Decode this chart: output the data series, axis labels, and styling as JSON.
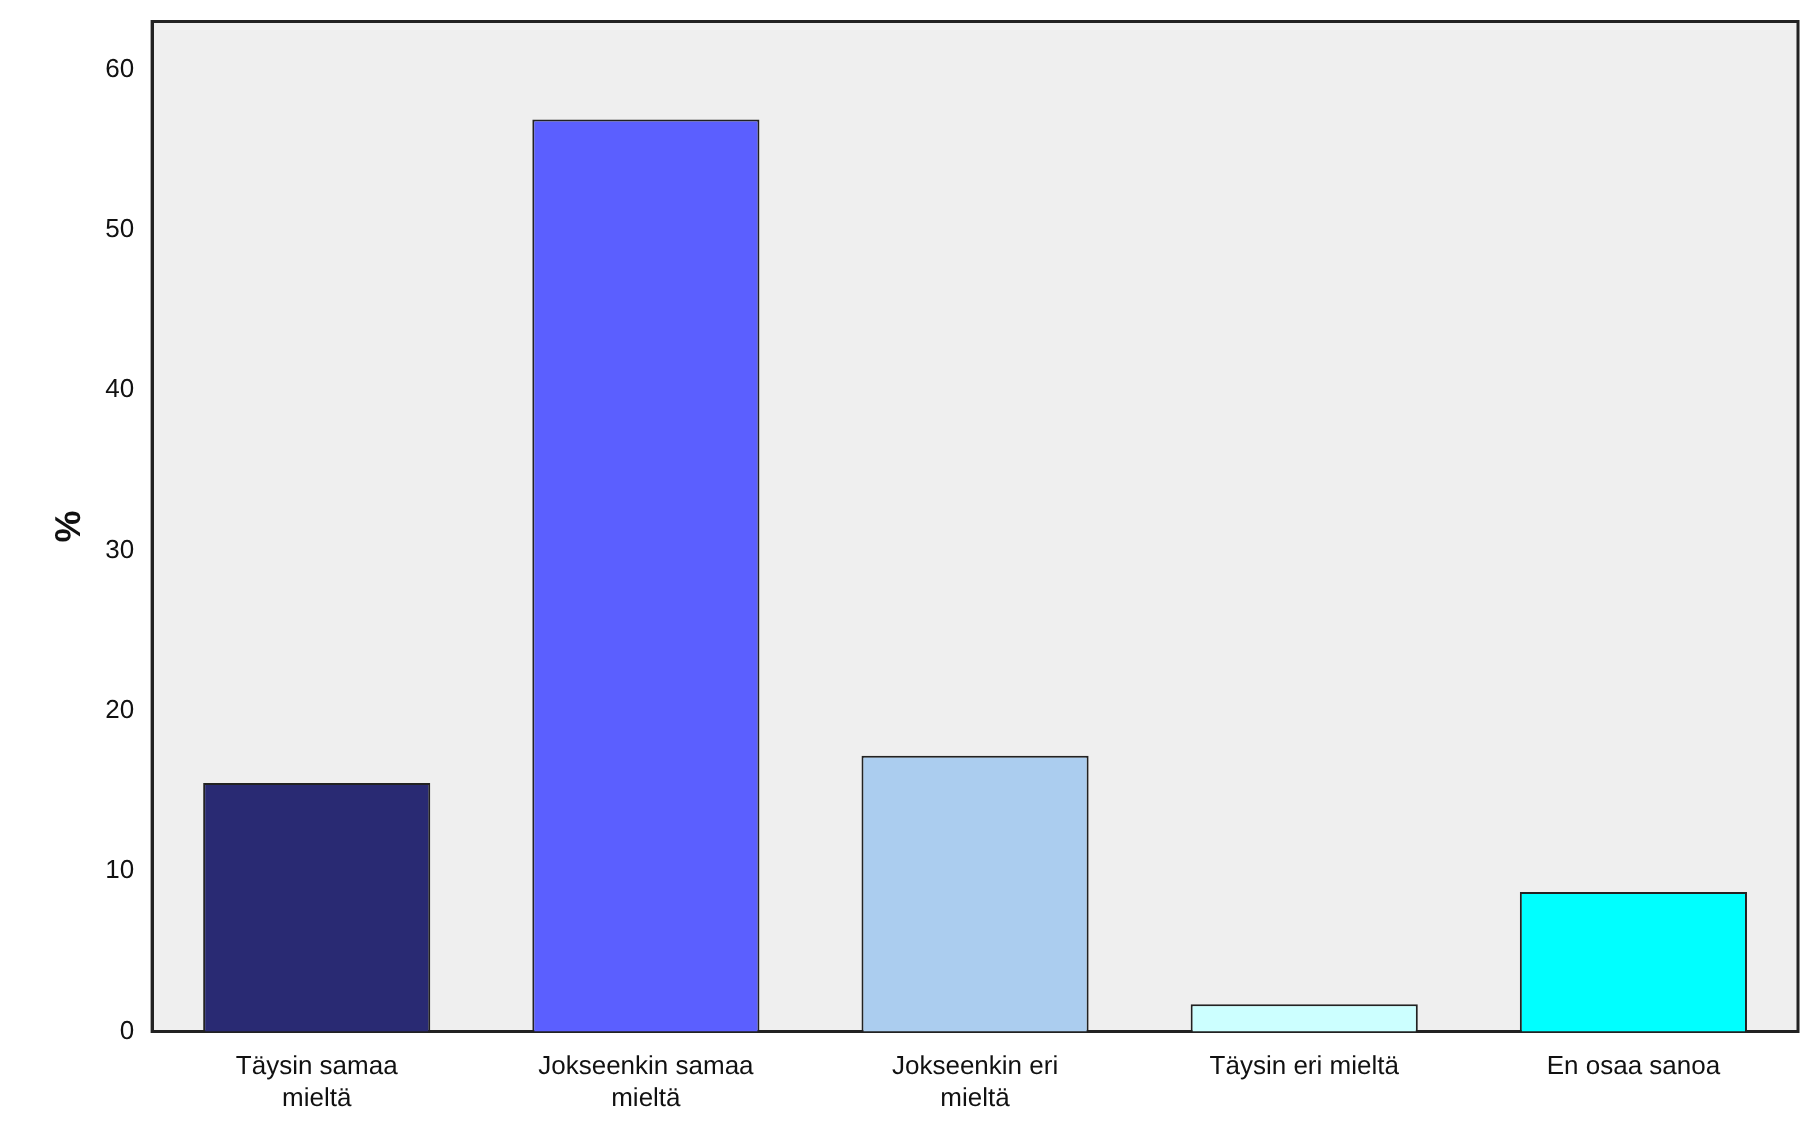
{
  "chart_data": {
    "type": "bar",
    "ylabel": "%",
    "categories": [
      "Täysin samaa mieltä",
      "Jokseenkin samaa mieltä",
      "Jokseenkin eri mieltä",
      "Täysin eri mieltä",
      "En osaa sanoa"
    ],
    "values": [
      15.5,
      56.9,
      17.2,
      1.7,
      8.7
    ],
    "colors": [
      "#292a73",
      "#5b5fff",
      "#abcdef",
      "#ccffff",
      "#00ffff"
    ],
    "ylim": [
      0,
      63
    ],
    "yticks": [
      0,
      10,
      20,
      30,
      40,
      50,
      60
    ],
    "grid": false,
    "legend": false
  }
}
